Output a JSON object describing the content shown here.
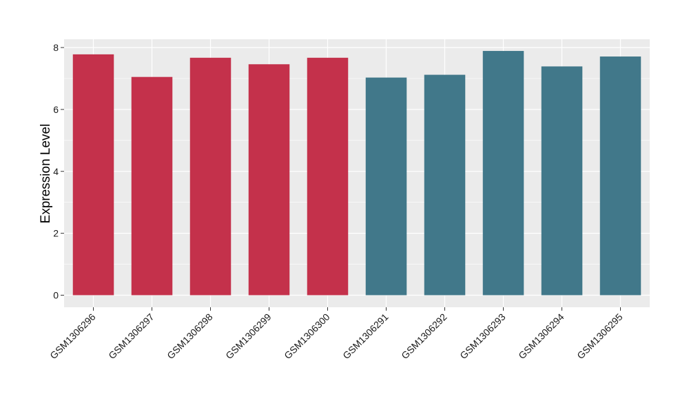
{
  "chart_data": {
    "type": "bar",
    "title": "",
    "xlabel": "",
    "ylabel": "Expression Level",
    "ylim": [
      0,
      8
    ],
    "yticks": [
      0,
      2,
      4,
      6,
      8
    ],
    "grid": true,
    "legend": "none",
    "categories": [
      "GSM1306296",
      "GSM1306297",
      "GSM1306298",
      "GSM1306299",
      "GSM1306300",
      "GSM1306291",
      "GSM1306292",
      "GSM1306293",
      "GSM1306294",
      "GSM1306295"
    ],
    "values": [
      7.78,
      7.05,
      7.67,
      7.46,
      7.67,
      7.03,
      7.12,
      7.89,
      7.39,
      7.71
    ],
    "bar_colors": [
      "#c4314b",
      "#c4314b",
      "#c4314b",
      "#c4314b",
      "#c4314b",
      "#41788a",
      "#41788a",
      "#41788a",
      "#41788a",
      "#41788a"
    ],
    "panel_background": "#ebebeb",
    "grid_color": "#ffffff"
  }
}
